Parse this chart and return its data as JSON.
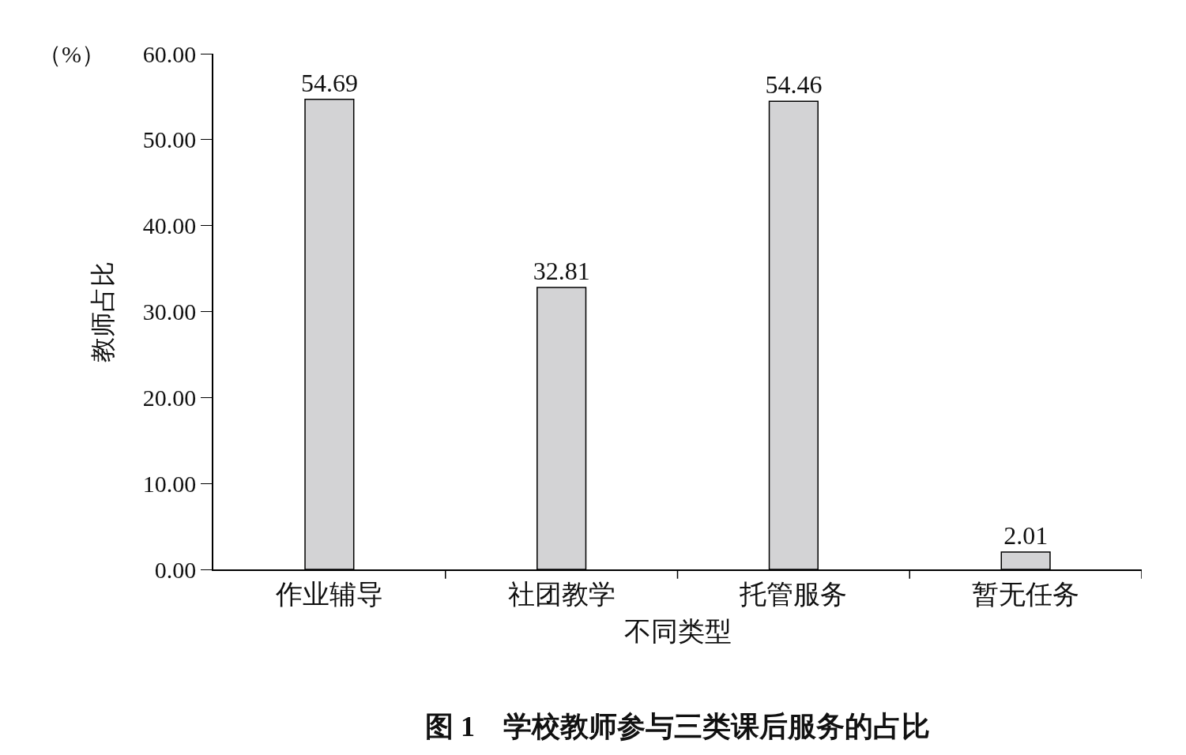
{
  "chart_data": {
    "type": "bar",
    "title": "图 1　学校教师参与三类课后服务的占比",
    "xlabel": "不同类型",
    "ylabel": "教师占比",
    "annotations": [
      "（%）"
    ],
    "categories": [
      "作业辅导",
      "社团教学",
      "托管服务",
      "暂无任务"
    ],
    "values": [
      54.69,
      32.81,
      54.46,
      2.01
    ],
    "color": "#d3d3d5",
    "data_labels": true,
    "ylim": [
      0,
      60
    ],
    "yticks": [
      {
        "value": 0,
        "label": "0.00"
      },
      {
        "value": 10,
        "label": "10.00"
      },
      {
        "value": 20,
        "label": "20.00"
      },
      {
        "value": 30,
        "label": "30.00"
      },
      {
        "value": 40,
        "label": "40.00"
      },
      {
        "value": 50,
        "label": "50.00"
      },
      {
        "value": 60,
        "label": "60.00"
      }
    ],
    "grid": false
  }
}
